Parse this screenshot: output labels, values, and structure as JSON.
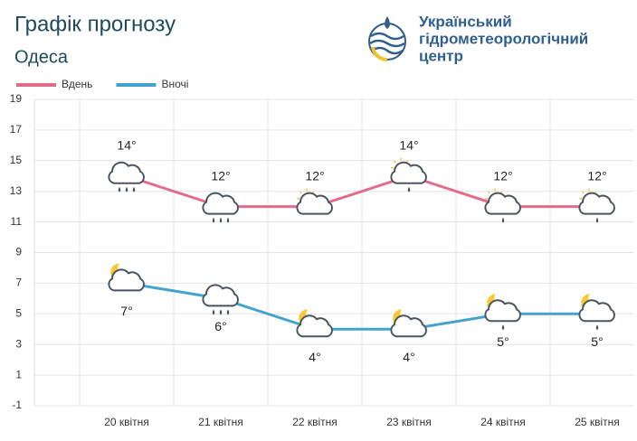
{
  "logo": {
    "lines": [
      "Український",
      "гідрометеорологічний",
      "центр"
    ]
  },
  "chart_data": {
    "type": "line",
    "title": "Графік прогнозу",
    "subtitle": "Одеса",
    "categories": [
      "20 квітня",
      "21 квітня",
      "22 квітня",
      "23 квітня",
      "24 квітня",
      "25 квітня"
    ],
    "series": [
      {
        "name": "Вдень",
        "color": "#e26d8a",
        "values": [
          14,
          12,
          12,
          14,
          12,
          12
        ],
        "value_labels": [
          "14°",
          "12°",
          "12°",
          "14°",
          "12°",
          "12°"
        ]
      },
      {
        "name": "Вночі",
        "color": "#43a3cf",
        "values": [
          7,
          6,
          4,
          4,
          5,
          5
        ],
        "value_labels": [
          "7°",
          "6°",
          "4°",
          "4°",
          "5°",
          "5°"
        ]
      }
    ],
    "ylim": [
      -1,
      19
    ],
    "yticks": [
      -1,
      1,
      3,
      5,
      7,
      9,
      11,
      13,
      15,
      17,
      19
    ],
    "grid": true,
    "legend": "top-left"
  }
}
